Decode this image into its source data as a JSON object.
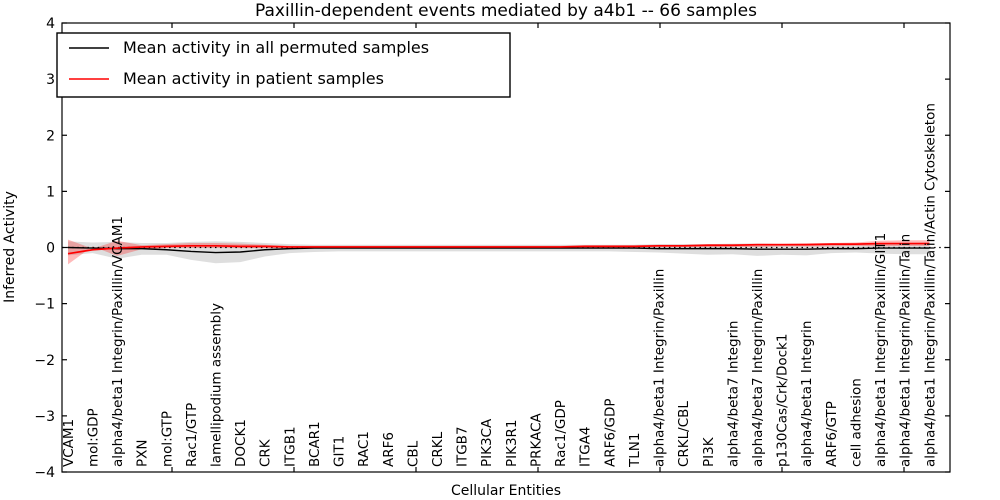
{
  "header": {
    "title": "Paxillin-dependent events mediated by a4b1 -- 66 samples"
  },
  "legend": {
    "permuted_label": "Mean activity in all permuted samples",
    "patient_label": "Mean activity in patient samples"
  },
  "axes": {
    "xlabel": "Cellular Entities",
    "ylabel": "Inferred Activity",
    "ytick_labels": [
      "4",
      "3",
      "2",
      "1",
      "0",
      "−1",
      "−2",
      "−3",
      "−4"
    ]
  },
  "chart_data": {
    "type": "line",
    "title": "Paxillin-dependent events mediated by a4b1 -- 66 samples",
    "xlabel": "Cellular Entities",
    "ylabel": "Inferred Activity",
    "ylim": [
      -4,
      4
    ],
    "yticks": [
      4,
      3,
      2,
      1,
      0,
      -1,
      -2,
      -3,
      -4
    ],
    "grid": false,
    "legend_position": "upper left",
    "zero_line": true,
    "categories": [
      "VCAM1",
      "mol:GDP",
      "alpha4/beta1 Integrin/Paxillin/VCAM1",
      "PXN",
      "mol:GTP",
      "Rac1/GTP",
      "lamellipodium assembly",
      "DOCK1",
      "CRK",
      "ITGB1",
      "BCAR1",
      "GIT1",
      "RAC1",
      "ARF6",
      "CBL",
      "CRKL",
      "ITGB7",
      "PIK3CA",
      "PIK3R1",
      "PRKACA",
      "Rac1/GDP",
      "ITGA4",
      "ARF6/GDP",
      "TLN1",
      "alpha4/beta1 Integrin/Paxillin",
      "CRKL/CBL",
      "PI3K",
      "alpha4/beta7 Integrin",
      "alpha4/beta7 Integrin/Paxillin",
      "p130Cas/Crk/Dock1",
      "alpha4/beta1 Integrin",
      "ARF6/GTP",
      "cell adhesion",
      "alpha4/beta1 Integrin/Paxillin/GIT1",
      "alpha4/beta1 Integrin/Paxillin/Talin",
      "alpha4/beta1 Integrin/Paxillin/Talin/Actin Cytoskeleton"
    ],
    "series": [
      {
        "name": "Mean activity in all permuted samples",
        "color": "#000000",
        "values": [
          0.0,
          -0.01,
          -0.02,
          -0.02,
          -0.04,
          -0.07,
          -0.09,
          -0.08,
          -0.04,
          -0.02,
          -0.01,
          -0.01,
          -0.01,
          -0.01,
          -0.01,
          -0.01,
          -0.01,
          -0.01,
          -0.01,
          -0.01,
          -0.01,
          -0.01,
          -0.01,
          -0.01,
          -0.02,
          -0.02,
          -0.02,
          -0.02,
          -0.03,
          -0.03,
          -0.03,
          -0.02,
          -0.02,
          -0.01,
          -0.01,
          -0.01
        ]
      },
      {
        "name": "Mean activity in patient samples",
        "color": "#ff0000",
        "values": [
          -0.11,
          -0.04,
          -0.01,
          0.01,
          0.02,
          0.03,
          0.03,
          0.02,
          0.02,
          0.01,
          0.01,
          0.01,
          0.01,
          0.01,
          0.01,
          0.01,
          0.01,
          0.01,
          0.01,
          0.01,
          0.01,
          0.02,
          0.02,
          0.02,
          0.03,
          0.03,
          0.04,
          0.04,
          0.05,
          0.05,
          0.05,
          0.06,
          0.06,
          0.07,
          0.07,
          0.07
        ]
      }
    ],
    "bands": [
      {
        "name": "permuted-samples-range",
        "color": "rgba(0,0,0,0.13)",
        "upper": [
          0.11,
          0.09,
          0.1,
          0.08,
          0.08,
          0.1,
          0.11,
          0.1,
          0.08,
          0.06,
          0.05,
          0.05,
          0.05,
          0.05,
          0.05,
          0.05,
          0.05,
          0.05,
          0.05,
          0.05,
          0.05,
          0.05,
          0.05,
          0.05,
          0.06,
          0.06,
          0.06,
          0.07,
          0.07,
          0.06,
          0.06,
          0.05,
          0.06,
          0.08,
          0.08,
          0.09
        ],
        "lower": [
          -0.14,
          -0.1,
          -0.2,
          -0.13,
          -0.13,
          -0.22,
          -0.28,
          -0.26,
          -0.16,
          -0.1,
          -0.08,
          -0.07,
          -0.07,
          -0.07,
          -0.07,
          -0.07,
          -0.07,
          -0.07,
          -0.07,
          -0.07,
          -0.07,
          -0.07,
          -0.07,
          -0.08,
          -0.09,
          -0.11,
          -0.13,
          -0.12,
          -0.15,
          -0.13,
          -0.14,
          -0.1,
          -0.09,
          -0.11,
          -0.12,
          -0.12
        ]
      },
      {
        "name": "patient-samples-range",
        "color": "rgba(255,0,0,0.27)",
        "upper": [
          0.14,
          -0.02,
          0.12,
          0.04,
          0.06,
          0.08,
          0.08,
          0.07,
          0.05,
          0.03,
          0.03,
          0.03,
          0.03,
          0.03,
          0.03,
          0.03,
          0.03,
          0.03,
          0.03,
          0.03,
          0.03,
          0.04,
          0.04,
          0.04,
          0.05,
          0.05,
          0.06,
          0.06,
          0.07,
          0.07,
          0.08,
          0.08,
          0.09,
          0.12,
          0.13,
          0.13
        ],
        "lower": [
          -0.3,
          0.02,
          -0.15,
          -0.03,
          -0.01,
          -0.01,
          -0.01,
          -0.01,
          -0.01,
          -0.01,
          -0.01,
          -0.01,
          -0.01,
          -0.01,
          -0.01,
          -0.01,
          -0.01,
          -0.01,
          -0.01,
          -0.01,
          -0.01,
          0.0,
          0.0,
          0.0,
          0.01,
          0.01,
          0.01,
          0.01,
          0.01,
          0.02,
          0.02,
          0.02,
          0.03,
          0.02,
          0.03,
          0.03
        ]
      }
    ]
  }
}
